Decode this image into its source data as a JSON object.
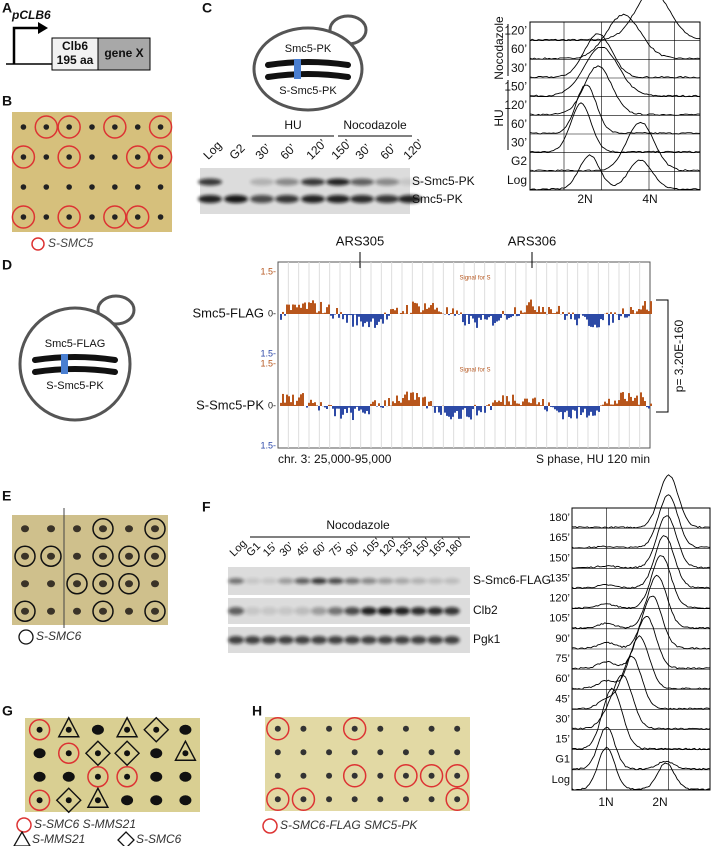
{
  "A": {
    "label": "A",
    "promoter": "pCLB6",
    "fusion": "Clb6",
    "fusion_length": "195 aa",
    "gene": "gene X"
  },
  "B": {
    "label": "B",
    "legend": "S-SMC5"
  },
  "C": {
    "label": "C",
    "cell": [
      "Smc5-PK",
      "S-Smc5-PK"
    ],
    "lanes": [
      "Log",
      "G2",
      "30’",
      "60’",
      "120’",
      "150’",
      "30’",
      "60’",
      "120’"
    ],
    "groups": [
      "HU",
      "Nocodazole"
    ],
    "bands": [
      "S-Smc5-PK",
      "Smc5-PK"
    ],
    "facs_rows": [
      "120’",
      "60’",
      "30’",
      "150’",
      "120’",
      "60’",
      "30’",
      "G2",
      "Log"
    ],
    "facs_groups": [
      "Nocodazole",
      "HU"
    ],
    "facs_x": [
      "2N",
      "4N"
    ]
  },
  "D": {
    "label": "D",
    "cell": [
      "Smc5-FLAG",
      "S-Smc5-PK"
    ],
    "loci": [
      "ARS305",
      "ARS306"
    ],
    "tracks": [
      "Smc5-FLAG",
      "S-Smc5-PK"
    ],
    "axis": [
      "1.5-",
      "0-",
      "1.5-"
    ],
    "track_note": "Signal for S",
    "region": "chr. 3: 25,000-95,000",
    "condition": "S phase, HU 120 min",
    "pvalue": "p= 3.20E-160"
  },
  "E": {
    "label": "E",
    "legend": "S-SMC6"
  },
  "F": {
    "label": "F",
    "treatment": "Nocodazole",
    "lanes": [
      "Log",
      "G1",
      "15’",
      "30’",
      "45’",
      "60’",
      "75’",
      "90’",
      "105’",
      "120’",
      "135’",
      "150’",
      "165’",
      "180’"
    ],
    "bands": [
      "S-Smc6-FLAG",
      "Clb2",
      "Pgk1"
    ],
    "facs_rows": [
      "180’",
      "165’",
      "150’",
      "135’",
      "120’",
      "105’",
      "90’",
      "75’",
      "60’",
      "45’",
      "30’",
      "15’",
      "G1",
      "Log"
    ],
    "facs_x": [
      "1N",
      "2N"
    ]
  },
  "G": {
    "label": "G",
    "legend_circle": "S-SMC6 S-MMS21",
    "legend_triangle": "S-MMS21",
    "legend_diamond": "S-SMC6"
  },
  "H": {
    "label": "H",
    "legend": "S-SMC6-FLAG SMC5-PK"
  }
}
